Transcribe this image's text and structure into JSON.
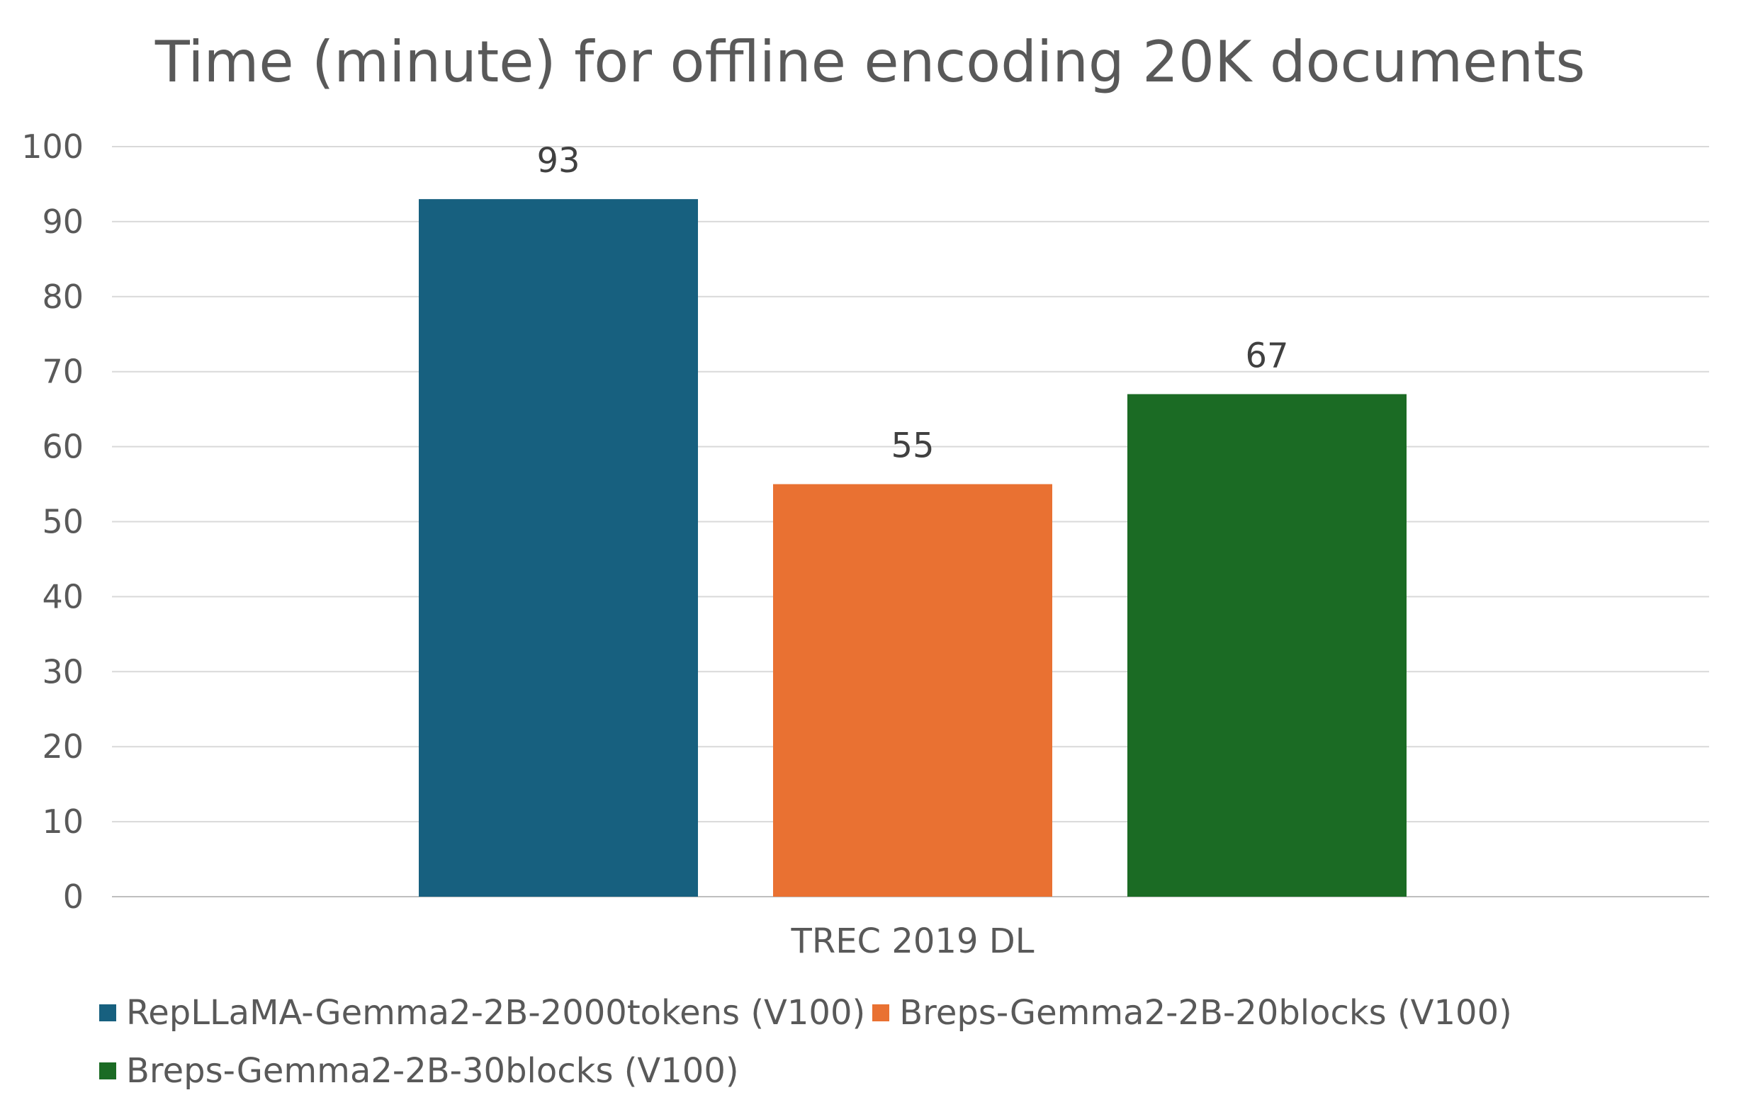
{
  "chart_data": {
    "type": "bar",
    "title": "Time (minute) for offline encoding 20K documents",
    "categories": [
      "TREC 2019 DL"
    ],
    "series": [
      {
        "name": "RepLLaMA-Gemma2-2B-2000tokens (V100)",
        "values": [
          93
        ],
        "color": "#17607F"
      },
      {
        "name": "Breps-Gemma2-2B-20blocks (V100)",
        "values": [
          55
        ],
        "color": "#E97132"
      },
      {
        "name": "Breps-Gemma2-2B-30blocks (V100)",
        "values": [
          67
        ],
        "color": "#1B6B24"
      }
    ],
    "ylim": [
      0,
      100
    ],
    "yticks": [
      0,
      10,
      20,
      30,
      40,
      50,
      60,
      70,
      80,
      90,
      100
    ],
    "data_labels": true,
    "grid": true,
    "legend_position": "bottom"
  }
}
